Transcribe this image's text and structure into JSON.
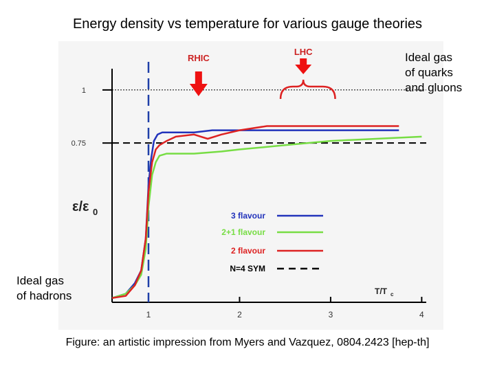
{
  "slide": {
    "title": "Energy density vs temperature for various gauge theories",
    "note_quarks": [
      "Ideal gas",
      "of quarks",
      "and gluons"
    ],
    "note_hadrons": [
      "Ideal gas",
      "of hadrons"
    ],
    "caption": "Figure: an artistic impression from Myers and Vazquez, 0804.2423 [hep-th]"
  },
  "chart_data": {
    "type": "line",
    "title": "Energy density vs temperature for various gauge theories",
    "xlabel": "T/T",
    "xlabel_subscript": "c",
    "ylabel": "ε/ε",
    "ylabel_subscript": "0",
    "xlim": [
      0.6,
      4.05
    ],
    "ylim": [
      0,
      1.1
    ],
    "x_ticks": [
      1,
      2,
      3,
      4
    ],
    "x_tick_labels": [
      "1",
      "2",
      "3",
      "4"
    ],
    "y_ticks": [
      0.75,
      1
    ],
    "y_tick_labels": [
      "0.75",
      "1"
    ],
    "reference_lines": [
      {
        "name": "Ideal gas of quarks and gluons",
        "y": 1,
        "style": "dotted"
      },
      {
        "name": "N=4 SYM",
        "y": 0.75,
        "style": "dashed"
      }
    ],
    "markers": [
      {
        "label": "RHIC",
        "x": 1.55,
        "range": [
          1.55,
          1.55
        ]
      },
      {
        "label": "LHC",
        "x": 2.7,
        "range": [
          2.45,
          3.05
        ]
      }
    ],
    "critical_line_x": 1,
    "series": [
      {
        "name": "3 flavour",
        "color": "#2233bb",
        "x": [
          0.6,
          0.75,
          0.85,
          0.92,
          0.97,
          1.0,
          1.03,
          1.06,
          1.1,
          1.15,
          1.25,
          1.5,
          1.7,
          2.0,
          2.5,
          3.0,
          3.5,
          3.75
        ],
        "y": [
          0.02,
          0.04,
          0.09,
          0.15,
          0.3,
          0.55,
          0.68,
          0.76,
          0.79,
          0.8,
          0.8,
          0.8,
          0.81,
          0.81,
          0.81,
          0.81,
          0.81,
          0.81
        ]
      },
      {
        "name": "2+1 flavour",
        "color": "#77dd44",
        "x": [
          0.6,
          0.75,
          0.85,
          0.92,
          0.97,
          1.0,
          1.04,
          1.08,
          1.12,
          1.2,
          1.3,
          1.5,
          1.8,
          2.0,
          2.5,
          3.0,
          3.5,
          4.0
        ],
        "y": [
          0.02,
          0.04,
          0.08,
          0.13,
          0.25,
          0.45,
          0.6,
          0.66,
          0.69,
          0.7,
          0.7,
          0.7,
          0.71,
          0.72,
          0.74,
          0.76,
          0.77,
          0.78
        ]
      },
      {
        "name": "2 flavour",
        "color": "#dd2222",
        "x": [
          0.6,
          0.75,
          0.85,
          0.92,
          0.97,
          1.0,
          1.04,
          1.08,
          1.12,
          1.2,
          1.3,
          1.5,
          1.65,
          1.8,
          2.0,
          2.3,
          2.5,
          3.0,
          3.5,
          3.75
        ],
        "y": [
          0.02,
          0.03,
          0.08,
          0.15,
          0.3,
          0.52,
          0.66,
          0.72,
          0.74,
          0.76,
          0.78,
          0.79,
          0.77,
          0.79,
          0.81,
          0.83,
          0.83,
          0.83,
          0.83,
          0.83
        ]
      }
    ],
    "legend": {
      "position": "center",
      "entries": [
        {
          "label": "3 flavour",
          "color": "#2233bb",
          "style": "solid"
        },
        {
          "label": "2+1 flavour",
          "color": "#77dd44",
          "style": "solid"
        },
        {
          "label": "2 flavour",
          "color": "#dd2222",
          "style": "solid"
        },
        {
          "label": "N=4 SYM",
          "color": "#000000",
          "style": "dashed"
        }
      ]
    }
  }
}
